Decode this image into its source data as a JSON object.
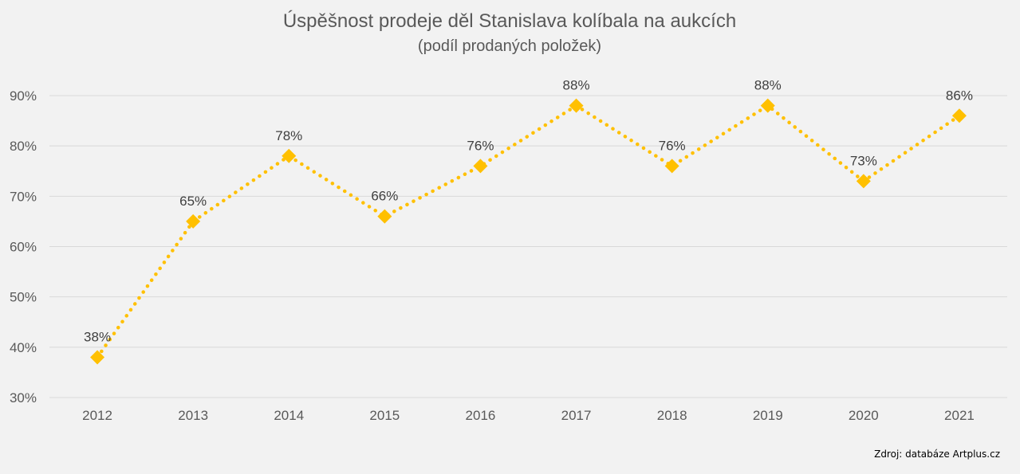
{
  "chart_data": {
    "type": "line",
    "title": "Úspěšnost prodeje děl Stanislava kolíbala na aukcích",
    "subtitle": "(podíl prodaných položek)",
    "categories": [
      "2012",
      "2013",
      "2014",
      "2015",
      "2016",
      "2017",
      "2018",
      "2019",
      "2020",
      "2021"
    ],
    "values": [
      38,
      65,
      78,
      66,
      76,
      88,
      76,
      88,
      73,
      86
    ],
    "value_labels": [
      "38%",
      "65%",
      "78%",
      "66%",
      "76%",
      "88%",
      "76%",
      "88%",
      "73%",
      "86%"
    ],
    "yticks": [
      30,
      40,
      50,
      60,
      70,
      80,
      90
    ],
    "ytick_labels": [
      "30%",
      "40%",
      "50%",
      "60%",
      "70%",
      "80%",
      "90%"
    ],
    "ylim": [
      30,
      90
    ],
    "xlabel": "",
    "ylabel": "",
    "grid": true,
    "legend": "none",
    "line_style": "dotted",
    "marker": "diamond",
    "colors": {
      "series": "#ffc000",
      "grid": "#d9d9d9",
      "text": "#595959"
    }
  },
  "source": "Zdroj: databáze Artplus.cz"
}
